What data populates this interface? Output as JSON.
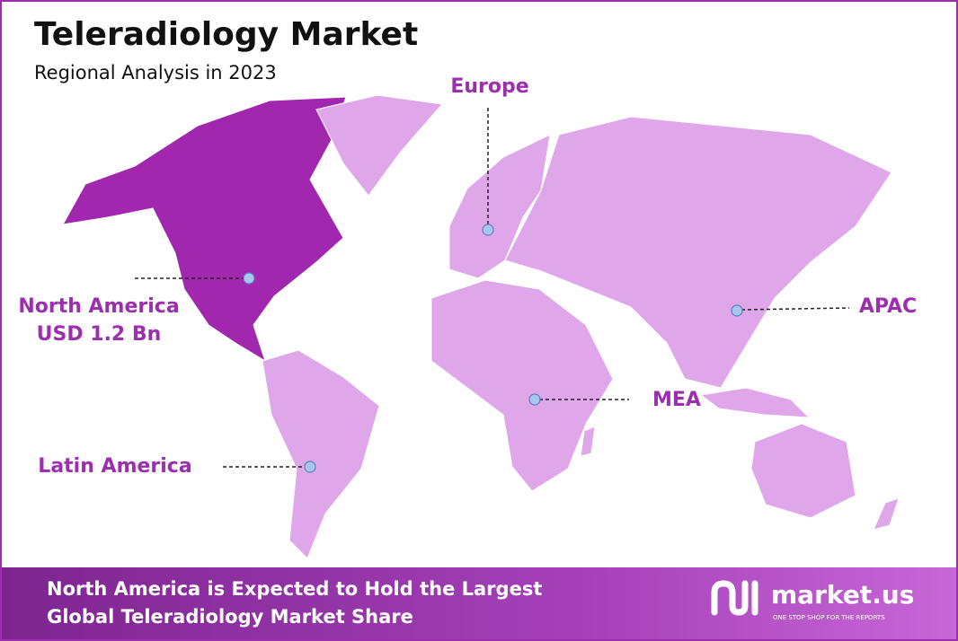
{
  "header": {
    "title": "Teleradiology Market",
    "subtitle": "Regional Analysis in 2023"
  },
  "regions": [
    {
      "label": "North America",
      "value": "USD 1.2 Bn"
    },
    {
      "label": "Europe"
    },
    {
      "label": "APAC"
    },
    {
      "label": "MEA"
    },
    {
      "label": "Latin America"
    }
  ],
  "footer": {
    "lines": [
      "North America is Expected to Hold the Largest",
      "Global Teleradiology Market Share"
    ]
  },
  "logo": {
    "name": "market.us",
    "tagline": "ONE STOP SHOP FOR THE REPORTS"
  }
}
